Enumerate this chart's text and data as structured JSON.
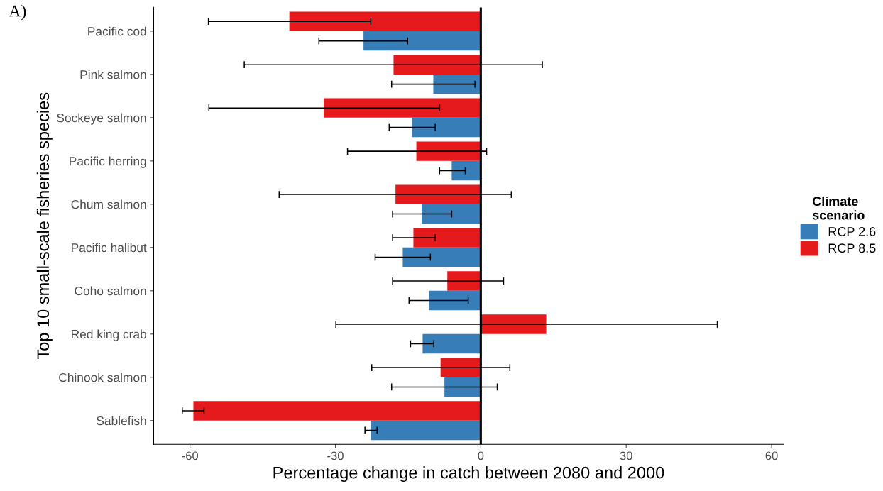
{
  "chart_data": {
    "type": "bar",
    "orientation": "horizontal",
    "xlabel": "Percentage change in catch between 2080 and 2000",
    "ylabel": "Top 10 small-scale fisheries species",
    "legend_title": "Climate\nscenario",
    "legend": "right",
    "grid": false,
    "annotations": [
      "A)"
    ],
    "categories": [
      "Pacific cod",
      "Pink salmon",
      "Sockeye salmon",
      "Pacific herring",
      "Chum salmon",
      "Pacific halibut",
      "Coho salmon",
      "Red king crab",
      "Chinook salmon",
      "Sablefish"
    ],
    "xlim": [
      -67.5,
      62.4
    ],
    "xticks": [
      -60,
      -30,
      0,
      30,
      60
    ],
    "ref_lines": [
      {
        "axis": "x",
        "value": 0,
        "color": "#000000"
      }
    ],
    "series": [
      {
        "name": "RCP 2.6",
        "color": "#377eb8",
        "values": [
          -24.2,
          -9.8,
          -14.2,
          -6.0,
          -12.2,
          -16.1,
          -10.7,
          -12.0,
          -7.5,
          -22.7
        ],
        "errors": [
          [
            -33.4,
            -15.1
          ],
          [
            -18.4,
            -1.2
          ],
          [
            -18.9,
            -9.4
          ],
          [
            -8.5,
            -3.2
          ],
          [
            -18.2,
            -6.0
          ],
          [
            -21.8,
            -10.4
          ],
          [
            -14.8,
            -2.6
          ],
          [
            -14.5,
            -9.7
          ],
          [
            -18.4,
            3.4
          ],
          [
            -23.9,
            -21.4
          ]
        ]
      },
      {
        "name": "RCP 8.5",
        "color": "#e41a1c",
        "values": [
          -39.5,
          -18.0,
          -32.4,
          -13.3,
          -17.6,
          -13.9,
          -6.9,
          13.5,
          -8.3,
          -59.3
        ],
        "errors": [
          [
            -56.2,
            -22.7
          ],
          [
            -48.8,
            12.7
          ],
          [
            -56.1,
            -8.5
          ],
          [
            -27.5,
            1.2
          ],
          [
            -41.6,
            6.3
          ],
          [
            -18.2,
            -9.4
          ],
          [
            -18.2,
            4.7
          ],
          [
            -29.9,
            48.8
          ],
          [
            -22.5,
            6.0
          ],
          [
            -61.6,
            -57.1
          ]
        ]
      }
    ]
  }
}
